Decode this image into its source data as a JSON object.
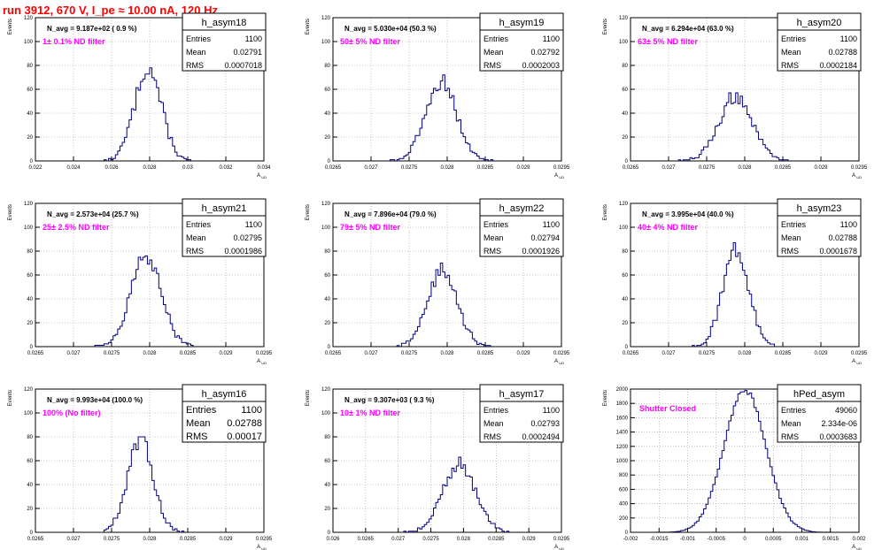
{
  "title": "run 3912,   670 V, I_pe ≈ 10.00 nA, 120 Hz",
  "colors": {
    "title": "#ff0000",
    "hist_line": "#000080",
    "annotation": "#ff00ff",
    "frame": "#000000",
    "grid": "#999999"
  },
  "chart_data": [
    {
      "type": "histogram",
      "name": "h_asym18",
      "navg": "N_avg = 9.187e+02 ( 0.9 %)",
      "label": "1± 0.1% ND filter",
      "stats": {
        "entries": "1100",
        "mean": "0.02791",
        "rms": "0.0007018"
      },
      "ylabel": "Events",
      "xlabel": "A_UD",
      "xlim": [
        0.022,
        0.034
      ],
      "ylim": [
        0,
        120
      ],
      "xticks": [
        "0.022",
        "0.024",
        "0.026",
        "0.028",
        "0.03",
        "0.032",
        "0.034"
      ],
      "yticks": [
        "0",
        "20",
        "40",
        "60",
        "80",
        "100",
        "120"
      ],
      "dist": {
        "mean": 0.02791,
        "rms": 0.0007018,
        "entries": 1100,
        "bins": 100,
        "peak": 78
      },
      "grid": true
    },
    {
      "type": "histogram",
      "name": "h_asym19",
      "navg": "N_avg = 5.030e+04 (50.3 %)",
      "label": "50± 5% ND filter",
      "stats": {
        "entries": "1100",
        "mean": "0.02792",
        "rms": "0.0002003"
      },
      "ylabel": "Events",
      "xlabel": "A_UD",
      "xlim": [
        0.0265,
        0.0295
      ],
      "ylim": [
        0,
        120
      ],
      "xticks": [
        "0.0265",
        "0.027",
        "0.0275",
        "0.028",
        "0.0285",
        "0.029",
        "0.0295"
      ],
      "yticks": [
        "0",
        "20",
        "40",
        "60",
        "80",
        "100",
        "120"
      ],
      "dist": {
        "mean": 0.02792,
        "rms": 0.0002003,
        "entries": 1100,
        "bins": 100,
        "peak": 72
      },
      "grid": true
    },
    {
      "type": "histogram",
      "name": "h_asym20",
      "navg": "N_avg = 6.294e+04 (63.0 %)",
      "label": "63± 5% ND filter",
      "stats": {
        "entries": "1100",
        "mean": "0.02788",
        "rms": "0.0002184"
      },
      "ylabel": "Events",
      "xlabel": "A_UD",
      "xlim": [
        0.0265,
        0.0295
      ],
      "ylim": [
        0,
        120
      ],
      "xticks": [
        "0.0265",
        "0.027",
        "0.0275",
        "0.028",
        "0.0285",
        "0.029",
        "0.0295"
      ],
      "yticks": [
        "0",
        "20",
        "40",
        "60",
        "80",
        "100",
        "120"
      ],
      "dist": {
        "mean": 0.02788,
        "rms": 0.0002184,
        "entries": 1100,
        "bins": 100,
        "peak": 57
      },
      "grid": true
    },
    {
      "type": "histogram",
      "name": "h_asym21",
      "navg": "N_avg = 2.573e+04 (25.7 %)",
      "label": "25± 2.5% ND filter",
      "stats": {
        "entries": "1100",
        "mean": "0.02795",
        "rms": "0.0001986"
      },
      "ylabel": "Events",
      "xlabel": "A_UD",
      "xlim": [
        0.0265,
        0.0295
      ],
      "ylim": [
        0,
        120
      ],
      "xticks": [
        "0.0265",
        "0.027",
        "0.0275",
        "0.028",
        "0.0285",
        "0.029",
        "0.0295"
      ],
      "yticks": [
        "0",
        "20",
        "40",
        "60",
        "80",
        "100",
        "120"
      ],
      "dist": {
        "mean": 0.02795,
        "rms": 0.0001986,
        "entries": 1100,
        "bins": 100,
        "peak": 76
      },
      "grid": true
    },
    {
      "type": "histogram",
      "name": "h_asym22",
      "navg": "N_avg = 7.896e+04 (79.0 %)",
      "label": "79± 5% ND filter",
      "stats": {
        "entries": "1100",
        "mean": "0.02794",
        "rms": "0.0001926"
      },
      "ylabel": "Events",
      "xlabel": "A_UD",
      "xlim": [
        0.0265,
        0.0295
      ],
      "ylim": [
        0,
        120
      ],
      "xticks": [
        "0.0265",
        "0.027",
        "0.0275",
        "0.028",
        "0.0285",
        "0.029",
        "0.0295"
      ],
      "yticks": [
        "0",
        "20",
        "40",
        "60",
        "80",
        "100",
        "120"
      ],
      "dist": {
        "mean": 0.02794,
        "rms": 0.0001926,
        "entries": 1100,
        "bins": 100,
        "peak": 70
      },
      "grid": true
    },
    {
      "type": "histogram",
      "name": "h_asym23",
      "navg": "N_avg = 3.995e+04 (40.0 %)",
      "label": "40± 4% ND filter",
      "stats": {
        "entries": "1100",
        "mean": "0.02788",
        "rms": "0.0001678"
      },
      "ylabel": "Events",
      "xlabel": "A_UD",
      "xlim": [
        0.0265,
        0.0295
      ],
      "ylim": [
        0,
        120
      ],
      "xticks": [
        "0.0265",
        "0.027",
        "0.0275",
        "0.028",
        "0.0285",
        "0.029",
        "0.0295"
      ],
      "yticks": [
        "0",
        "20",
        "40",
        "60",
        "80",
        "100",
        "120"
      ],
      "dist": {
        "mean": 0.02788,
        "rms": 0.0001678,
        "entries": 1100,
        "bins": 100,
        "peak": 87
      },
      "grid": true
    },
    {
      "type": "histogram",
      "name": "h_asym16",
      "navg": "N_avg = 9.993e+04 (100.0 %)",
      "label": "100% (No filter)",
      "stats": {
        "entries": "1100",
        "mean": "0.02788",
        "rms": "0.00017"
      },
      "ylabel": "Events",
      "xlabel": "A_UD",
      "xlim": [
        0.0265,
        0.0295
      ],
      "ylim": [
        0,
        120
      ],
      "xticks": [
        "0.0265",
        "0.027",
        "0.0275",
        "0.028",
        "0.0285",
        "0.029",
        "0.0295"
      ],
      "yticks": [
        "0",
        "20",
        "40",
        "60",
        "80",
        "100",
        "120"
      ],
      "dist": {
        "mean": 0.02788,
        "rms": 0.00017,
        "entries": 1100,
        "bins": 100,
        "peak": 80
      },
      "grid": true
    },
    {
      "type": "histogram",
      "name": "h_asym17",
      "navg": "N_avg = 9.307e+03 ( 9.3 %)",
      "label": "10± 1% ND filter",
      "stats": {
        "entries": "1100",
        "mean": "0.02793",
        "rms": "0.0002494"
      },
      "ylabel": "Events",
      "xlabel": "A_UD",
      "xlim": [
        0.026,
        0.0295
      ],
      "ylim": [
        0,
        120
      ],
      "xticks": [
        "0.026",
        "0.0265",
        "0.027",
        "0.0275",
        "0.028",
        "0.0285",
        "0.029",
        "0.0295"
      ],
      "yticks": [
        "0",
        "20",
        "40",
        "60",
        "80",
        "100",
        "120"
      ],
      "dist": {
        "mean": 0.02793,
        "rms": 0.0002494,
        "entries": 1100,
        "bins": 100,
        "peak": 63
      },
      "grid": true
    },
    {
      "type": "histogram",
      "name": "hPed_asym",
      "navg": "",
      "label": "Shutter Closed",
      "stats": {
        "entries": "49060",
        "mean": "2.334e-06",
        "rms": "0.0003683"
      },
      "ylabel": "Events",
      "xlabel": "A_UD",
      "xlim": [
        -0.002,
        0.002
      ],
      "ylim": [
        0,
        2000
      ],
      "xticks": [
        "-0.002",
        "-0.0015",
        "-0.001",
        "-0.0005",
        "0",
        "0.0005",
        "0.001",
        "0.0015",
        "0.002"
      ],
      "yticks": [
        "0",
        "200",
        "400",
        "600",
        "800",
        "1000",
        "1200",
        "1400",
        "1600",
        "1800",
        "2000"
      ],
      "dist": {
        "mean": 2.334e-06,
        "rms": 0.0003683,
        "entries": 49060,
        "bins": 100,
        "peak": 1980
      },
      "grid": true
    }
  ]
}
